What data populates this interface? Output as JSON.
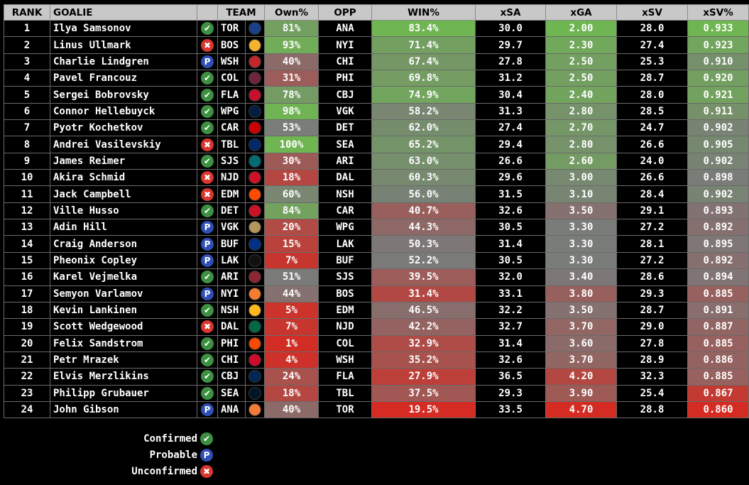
{
  "headers": {
    "rank": "RANK",
    "goalie": "GOALIE",
    "status": "",
    "team": "TEAM",
    "logo": "",
    "own": "Own%",
    "opp": "OPP",
    "win": "WIN%",
    "xsa": "xSA",
    "xga": "xGA",
    "xsv": "xSV",
    "xsvpct": "xSV%"
  },
  "status_icons": {
    "confirmed": "✔",
    "probable": "P",
    "unconfirmed": "✖"
  },
  "colors": {
    "confirmed": "#3d8f42",
    "probable": "#2f4fb6",
    "unconfirmed": "#d8372f",
    "heat_good": "#6fb552",
    "heat_mid": "#7a7a7a",
    "heat_bad": "#d42b22",
    "header_bg": "#c8c8c8"
  },
  "team_logo_icons": {
    "TOR": {
      "icon": "maple-leafs-logo-icon",
      "color": "#1b3f88"
    },
    "BOS": {
      "icon": "bruins-logo-icon",
      "color": "#f5b32e"
    },
    "WSH": {
      "icon": "capitals-logo-icon",
      "color": "#c1272d"
    },
    "COL": {
      "icon": "avalanche-logo-icon",
      "color": "#6f263d"
    },
    "FLA": {
      "icon": "panthers-logo-icon",
      "color": "#c8102e"
    },
    "WPG": {
      "icon": "jets-logo-icon",
      "color": "#041e42"
    },
    "CAR": {
      "icon": "hurricanes-logo-icon",
      "color": "#cc0000"
    },
    "TBL": {
      "icon": "lightning-logo-icon",
      "color": "#002868"
    },
    "SJS": {
      "icon": "sharks-logo-icon",
      "color": "#006d75"
    },
    "NJD": {
      "icon": "devils-logo-icon",
      "color": "#ce1126"
    },
    "EDM": {
      "icon": "oilers-logo-icon",
      "color": "#ff4c00"
    },
    "DET": {
      "icon": "red-wings-logo-icon",
      "color": "#ce1126"
    },
    "VGK": {
      "icon": "golden-knights-logo-icon",
      "color": "#b4975a"
    },
    "BUF": {
      "icon": "sabres-logo-icon",
      "color": "#003087"
    },
    "LAK": {
      "icon": "kings-logo-icon",
      "color": "#111111"
    },
    "ARI": {
      "icon": "coyotes-logo-icon",
      "color": "#8c2633"
    },
    "NYI": {
      "icon": "islanders-logo-icon",
      "color": "#f47d30"
    },
    "NSH": {
      "icon": "predators-logo-icon",
      "color": "#ffb81c"
    },
    "DAL": {
      "icon": "stars-logo-icon",
      "color": "#006847"
    },
    "PHI": {
      "icon": "flyers-logo-icon",
      "color": "#f74902"
    },
    "CHI": {
      "icon": "blackhawks-logo-icon",
      "color": "#cf0a2c"
    },
    "CBJ": {
      "icon": "blue-jackets-logo-icon",
      "color": "#002654"
    },
    "SEA": {
      "icon": "kraken-logo-icon",
      "color": "#001628"
    },
    "ANA": {
      "icon": "ducks-logo-icon",
      "color": "#f47a38"
    }
  },
  "rows": [
    {
      "rank": "1",
      "goalie": "Ilya Samsonov",
      "status": "confirmed",
      "team": "TOR",
      "own": "81%",
      "opp": "ANA",
      "win": "83.4%",
      "xsa": "30.0",
      "xga": "2.00",
      "xsv": "28.0",
      "xsvpct": "0.933"
    },
    {
      "rank": "2",
      "goalie": "Linus Ullmark",
      "status": "unconfirmed",
      "team": "BOS",
      "own": "93%",
      "opp": "NYI",
      "win": "71.4%",
      "xsa": "29.7",
      "xga": "2.30",
      "xsv": "27.4",
      "xsvpct": "0.923"
    },
    {
      "rank": "3",
      "goalie": "Charlie Lindgren",
      "status": "probable",
      "team": "WSH",
      "own": "40%",
      "opp": "CHI",
      "win": "67.4%",
      "xsa": "27.8",
      "xga": "2.50",
      "xsv": "25.3",
      "xsvpct": "0.910"
    },
    {
      "rank": "4",
      "goalie": "Pavel Francouz",
      "status": "confirmed",
      "team": "COL",
      "own": "31%",
      "opp": "PHI",
      "win": "69.8%",
      "xsa": "31.2",
      "xga": "2.50",
      "xsv": "28.7",
      "xsvpct": "0.920"
    },
    {
      "rank": "5",
      "goalie": "Sergei Bobrovsky",
      "status": "confirmed",
      "team": "FLA",
      "own": "78%",
      "opp": "CBJ",
      "win": "74.9%",
      "xsa": "30.4",
      "xga": "2.40",
      "xsv": "28.0",
      "xsvpct": "0.921"
    },
    {
      "rank": "6",
      "goalie": "Connor Hellebuyck",
      "status": "confirmed",
      "team": "WPG",
      "own": "98%",
      "opp": "VGK",
      "win": "58.2%",
      "xsa": "31.3",
      "xga": "2.80",
      "xsv": "28.5",
      "xsvpct": "0.911"
    },
    {
      "rank": "7",
      "goalie": "Pyotr Kochetkov",
      "status": "confirmed",
      "team": "CAR",
      "own": "53%",
      "opp": "DET",
      "win": "62.0%",
      "xsa": "27.4",
      "xga": "2.70",
      "xsv": "24.7",
      "xsvpct": "0.902"
    },
    {
      "rank": "8",
      "goalie": "Andrei Vasilevskiy",
      "status": "unconfirmed",
      "team": "TBL",
      "own": "100%",
      "opp": "SEA",
      "win": "65.2%",
      "xsa": "29.4",
      "xga": "2.80",
      "xsv": "26.6",
      "xsvpct": "0.905"
    },
    {
      "rank": "9",
      "goalie": "James Reimer",
      "status": "confirmed",
      "team": "SJS",
      "own": "30%",
      "opp": "ARI",
      "win": "63.0%",
      "xsa": "26.6",
      "xga": "2.60",
      "xsv": "24.0",
      "xsvpct": "0.902"
    },
    {
      "rank": "10",
      "goalie": "Akira Schmid",
      "status": "unconfirmed",
      "team": "NJD",
      "own": "18%",
      "opp": "DAL",
      "win": "60.3%",
      "xsa": "29.6",
      "xga": "3.00",
      "xsv": "26.6",
      "xsvpct": "0.898"
    },
    {
      "rank": "11",
      "goalie": "Jack Campbell",
      "status": "unconfirmed",
      "team": "EDM",
      "own": "60%",
      "opp": "NSH",
      "win": "56.0%",
      "xsa": "31.5",
      "xga": "3.10",
      "xsv": "28.4",
      "xsvpct": "0.902"
    },
    {
      "rank": "12",
      "goalie": "Ville Husso",
      "status": "confirmed",
      "team": "DET",
      "own": "84%",
      "opp": "CAR",
      "win": "40.7%",
      "xsa": "32.6",
      "xga": "3.50",
      "xsv": "29.1",
      "xsvpct": "0.893"
    },
    {
      "rank": "13",
      "goalie": "Adin Hill",
      "status": "probable",
      "team": "VGK",
      "own": "20%",
      "opp": "WPG",
      "win": "44.3%",
      "xsa": "30.5",
      "xga": "3.30",
      "xsv": "27.2",
      "xsvpct": "0.892"
    },
    {
      "rank": "14",
      "goalie": "Craig Anderson",
      "status": "probable",
      "team": "BUF",
      "own": "15%",
      "opp": "LAK",
      "win": "50.3%",
      "xsa": "31.4",
      "xga": "3.30",
      "xsv": "28.1",
      "xsvpct": "0.895"
    },
    {
      "rank": "15",
      "goalie": "Pheonix Copley",
      "status": "probable",
      "team": "LAK",
      "own": "7%",
      "opp": "BUF",
      "win": "52.2%",
      "xsa": "30.5",
      "xga": "3.30",
      "xsv": "27.2",
      "xsvpct": "0.892"
    },
    {
      "rank": "16",
      "goalie": "Karel Vejmelka",
      "status": "confirmed",
      "team": "ARI",
      "own": "51%",
      "opp": "SJS",
      "win": "39.5%",
      "xsa": "32.0",
      "xga": "3.40",
      "xsv": "28.6",
      "xsvpct": "0.894"
    },
    {
      "rank": "17",
      "goalie": "Semyon Varlamov",
      "status": "probable",
      "team": "NYI",
      "own": "44%",
      "opp": "BOS",
      "win": "31.4%",
      "xsa": "33.1",
      "xga": "3.80",
      "xsv": "29.3",
      "xsvpct": "0.885"
    },
    {
      "rank": "18",
      "goalie": "Kevin Lankinen",
      "status": "confirmed",
      "team": "NSH",
      "own": "5%",
      "opp": "EDM",
      "win": "46.5%",
      "xsa": "32.2",
      "xga": "3.50",
      "xsv": "28.7",
      "xsvpct": "0.891"
    },
    {
      "rank": "19",
      "goalie": "Scott Wedgewood",
      "status": "unconfirmed",
      "team": "DAL",
      "own": "7%",
      "opp": "NJD",
      "win": "42.2%",
      "xsa": "32.7",
      "xga": "3.70",
      "xsv": "29.0",
      "xsvpct": "0.887"
    },
    {
      "rank": "20",
      "goalie": "Felix Sandstrom",
      "status": "confirmed",
      "team": "PHI",
      "own": "1%",
      "opp": "COL",
      "win": "32.9%",
      "xsa": "31.4",
      "xga": "3.60",
      "xsv": "27.8",
      "xsvpct": "0.885"
    },
    {
      "rank": "21",
      "goalie": "Petr Mrazek",
      "status": "confirmed",
      "team": "CHI",
      "own": "4%",
      "opp": "WSH",
      "win": "35.2%",
      "xsa": "32.6",
      "xga": "3.70",
      "xsv": "28.9",
      "xsvpct": "0.886"
    },
    {
      "rank": "22",
      "goalie": "Elvis Merzlikins",
      "status": "confirmed",
      "team": "CBJ",
      "own": "24%",
      "opp": "FLA",
      "win": "27.9%",
      "xsa": "36.5",
      "xga": "4.20",
      "xsv": "32.3",
      "xsvpct": "0.885"
    },
    {
      "rank": "23",
      "goalie": "Philipp Grubauer",
      "status": "confirmed",
      "team": "SEA",
      "own": "18%",
      "opp": "TBL",
      "win": "37.5%",
      "xsa": "29.3",
      "xga": "3.90",
      "xsv": "25.4",
      "xsvpct": "0.867"
    },
    {
      "rank": "24",
      "goalie": "John Gibson",
      "status": "probable",
      "team": "ANA",
      "own": "40%",
      "opp": "TOR",
      "win": "19.5%",
      "xsa": "33.5",
      "xga": "4.70",
      "xsv": "28.8",
      "xsvpct": "0.860"
    }
  ],
  "legend": [
    {
      "label": "Confirmed",
      "status": "confirmed"
    },
    {
      "label": "Probable",
      "status": "probable"
    },
    {
      "label": "Unconfirmed",
      "status": "unconfirmed"
    }
  ]
}
